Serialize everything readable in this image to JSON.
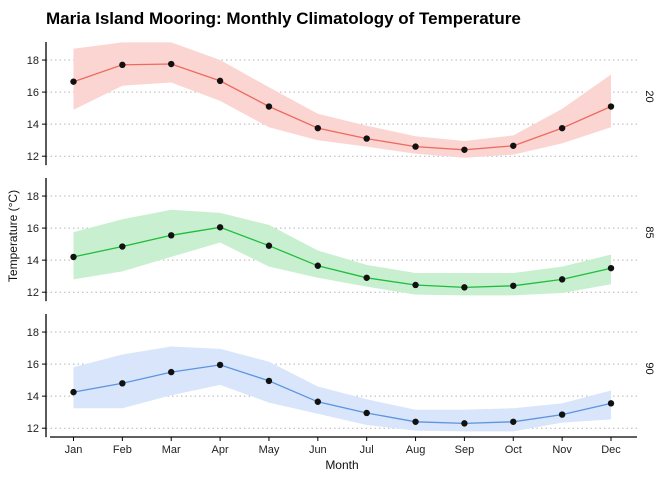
{
  "chart_data": {
    "type": "line",
    "title": "Maria Island Mooring: Monthly Climatology of Temperature",
    "xlabel": "Month",
    "ylabel": "Temperature (°C)",
    "categories": [
      "Jan",
      "Feb",
      "Mar",
      "Apr",
      "May",
      "Jun",
      "Jul",
      "Aug",
      "Sep",
      "Oct",
      "Nov",
      "Dec"
    ],
    "ylim": [
      11.7,
      19.5
    ],
    "yticks": [
      12,
      14,
      16,
      18
    ],
    "grid": "horizontal dotted",
    "panels": [
      {
        "label": "20",
        "color": "#ee6a5f",
        "band_color": "#fbd5d2",
        "values": [
          16.65,
          17.7,
          17.75,
          16.7,
          15.1,
          13.75,
          13.1,
          12.6,
          12.4,
          12.65,
          13.75,
          15.1
        ],
        "lower": [
          14.9,
          16.4,
          16.6,
          15.45,
          13.8,
          13.0,
          12.6,
          12.15,
          11.9,
          12.1,
          12.8,
          13.8
        ],
        "upper": [
          18.7,
          19.1,
          19.1,
          18.0,
          16.3,
          14.65,
          13.9,
          13.25,
          12.95,
          13.3,
          14.95,
          17.1
        ]
      },
      {
        "label": "85",
        "color": "#1fbd3c",
        "band_color": "#c8f0d0",
        "values": [
          14.2,
          14.85,
          15.55,
          16.05,
          14.9,
          13.65,
          12.9,
          12.45,
          12.3,
          12.4,
          12.8,
          13.5
        ],
        "lower": [
          12.8,
          13.3,
          14.2,
          15.1,
          13.6,
          12.9,
          12.35,
          11.85,
          11.8,
          11.8,
          11.95,
          12.5
        ],
        "upper": [
          15.75,
          16.55,
          17.15,
          16.95,
          16.2,
          14.6,
          13.7,
          13.2,
          13.2,
          13.2,
          13.6,
          14.35
        ]
      },
      {
        "label": "90",
        "color": "#5c94e0",
        "band_color": "#d8e5fa",
        "values": [
          14.25,
          14.8,
          15.5,
          15.95,
          14.95,
          13.65,
          12.95,
          12.4,
          12.3,
          12.4,
          12.85,
          13.55
        ],
        "lower": [
          13.25,
          13.25,
          14.05,
          14.7,
          13.6,
          12.9,
          12.2,
          11.85,
          11.8,
          11.8,
          12.35,
          12.55
        ],
        "upper": [
          15.8,
          16.6,
          17.1,
          16.95,
          16.15,
          14.6,
          13.8,
          13.15,
          13.15,
          13.25,
          13.55,
          14.35
        ]
      }
    ]
  }
}
